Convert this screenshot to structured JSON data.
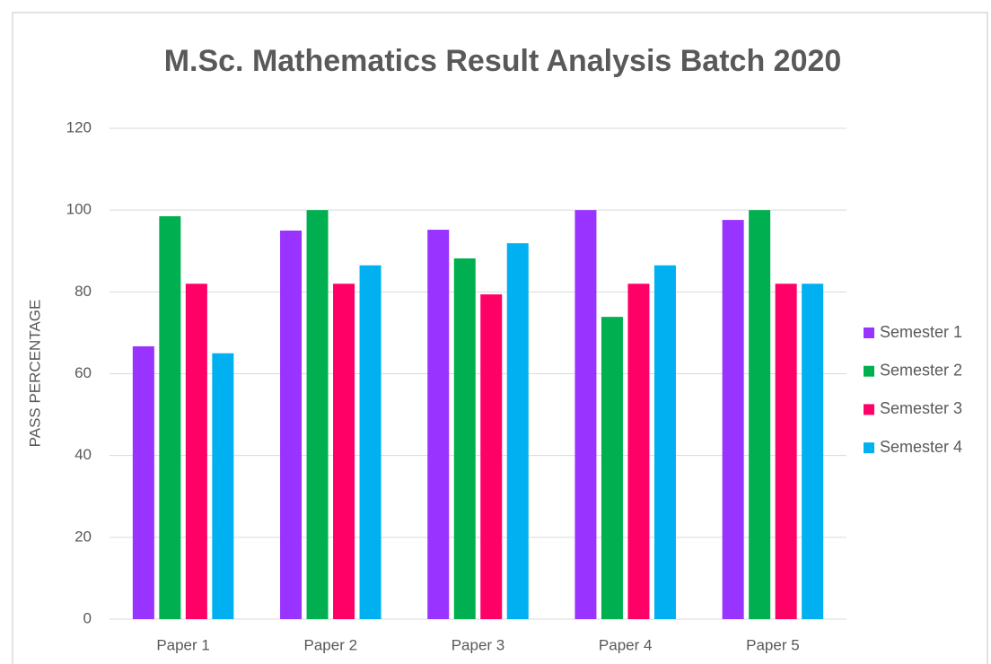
{
  "chart_data": {
    "type": "bar",
    "title": "M.Sc. Mathematics Result Analysis  Batch 2020",
    "y_label": "PASS PERCENTAGE",
    "categories": [
      "Paper 1",
      "Paper 2",
      "Paper 3",
      "Paper 4",
      "Paper 5"
    ],
    "series": [
      {
        "name": "Semester 1",
        "color": "#9933ff",
        "values": [
          66.7,
          95,
          95.2,
          100,
          97.6
        ]
      },
      {
        "name": "Semester 2",
        "color": "#00b050",
        "values": [
          98.5,
          100,
          88.2,
          73.9,
          100
        ]
      },
      {
        "name": "Semester 3",
        "color": "#ff0066",
        "values": [
          82,
          82,
          79.4,
          82,
          82
        ]
      },
      {
        "name": "Semester 4",
        "color": "#00b0f0",
        "values": [
          65,
          86.5,
          91.9,
          86.5,
          82
        ]
      }
    ],
    "ylim": [
      0,
      120
    ],
    "yticks": [
      0,
      20,
      40,
      60,
      80,
      100,
      120
    ],
    "grid": true,
    "legend": "right"
  }
}
